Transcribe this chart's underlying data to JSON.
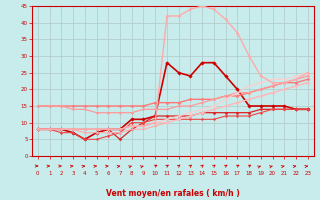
{
  "xlabel": "Vent moyen/en rafales ( km/h )",
  "bg_color": "#c8ecec",
  "grid_color": "#b0c8c8",
  "x_values": [
    0,
    1,
    2,
    3,
    4,
    5,
    6,
    7,
    8,
    9,
    10,
    11,
    12,
    13,
    14,
    15,
    16,
    17,
    18,
    19,
    20,
    21,
    22,
    23
  ],
  "lines": [
    {
      "y": [
        8,
        8,
        8,
        7,
        5,
        7,
        8,
        8,
        11,
        11,
        12,
        28,
        25,
        24,
        28,
        28,
        24,
        20,
        15,
        15,
        15,
        15,
        14,
        14
      ],
      "color": "#cc0000",
      "lw": 1.2,
      "marker": "D",
      "ms": 1.8
    },
    {
      "y": [
        8,
        8,
        8,
        8,
        8,
        8,
        8,
        5,
        8,
        10,
        12,
        12,
        12,
        12,
        13,
        13,
        13,
        13,
        13,
        14,
        14,
        14,
        14,
        14
      ],
      "color": "#dd2222",
      "lw": 0.9,
      "marker": "D",
      "ms": 1.5
    },
    {
      "y": [
        8,
        8,
        7,
        7,
        5,
        5,
        6,
        7,
        10,
        10,
        11,
        11,
        11,
        11,
        11,
        11,
        12,
        12,
        12,
        13,
        14,
        14,
        14,
        14
      ],
      "color": "#ee4444",
      "lw": 0.8,
      "marker": "D",
      "ms": 1.3
    },
    {
      "y": [
        15,
        15,
        15,
        15,
        15,
        15,
        15,
        15,
        15,
        15,
        16,
        16,
        16,
        17,
        17,
        17,
        18,
        18,
        19,
        20,
        21,
        22,
        22,
        23
      ],
      "color": "#ff7777",
      "lw": 1.0,
      "marker": "D",
      "ms": 1.5
    },
    {
      "y": [
        15,
        15,
        15,
        14,
        14,
        13,
        13,
        13,
        13,
        14,
        14,
        14,
        15,
        15,
        16,
        17,
        18,
        19,
        19,
        20,
        21,
        22,
        23,
        24
      ],
      "color": "#ff9999",
      "lw": 0.9,
      "marker": "D",
      "ms": 1.3
    },
    {
      "y": [
        8,
        8,
        8,
        8,
        7,
        7,
        7,
        7,
        8,
        8,
        9,
        10,
        11,
        12,
        13,
        14,
        15,
        16,
        17,
        18,
        19,
        20,
        21,
        22
      ],
      "color": "#ffaaaa",
      "lw": 0.8,
      "marker": "D",
      "ms": 1.2
    },
    {
      "y": [
        8,
        8,
        8,
        8,
        8,
        8,
        8,
        8,
        9,
        9,
        10,
        10,
        11,
        12,
        13,
        14,
        15,
        16,
        17,
        18,
        19,
        20,
        21,
        22
      ],
      "color": "#ffbbbb",
      "lw": 0.8,
      "marker": "D",
      "ms": 1.2
    },
    {
      "y": [
        8,
        8,
        8,
        8,
        8,
        8,
        8,
        8,
        9,
        9,
        10,
        11,
        12,
        13,
        14,
        15,
        17,
        19,
        21,
        22,
        23,
        23,
        24,
        25
      ],
      "color": "#ffcccc",
      "lw": 0.8,
      "marker": "D",
      "ms": 1.2
    },
    {
      "y": [
        8,
        8,
        8,
        8,
        8,
        8,
        8,
        8,
        9,
        9,
        10,
        42,
        42,
        44,
        45,
        44,
        41,
        37,
        30,
        24,
        22,
        22,
        23,
        25
      ],
      "color": "#ffaaaa",
      "lw": 1.0,
      "marker": "D",
      "ms": 1.5
    }
  ],
  "ylim": [
    0,
    45
  ],
  "yticks": [
    0,
    5,
    10,
    15,
    20,
    25,
    30,
    35,
    40,
    45
  ],
  "xlim": [
    -0.5,
    23.5
  ],
  "tick_fontsize": 4.0,
  "xlabel_fontsize": 5.5
}
